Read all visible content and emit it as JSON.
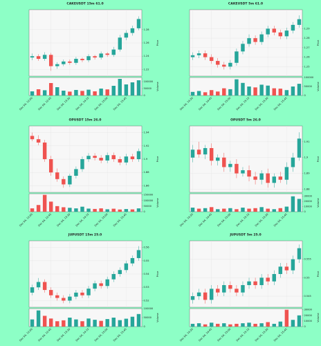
{
  "background": "#8dffc6",
  "chart_data": [
    {
      "type": "candlestick",
      "title": "CAKEUSDT 15m 61.0",
      "ylabel": "Price",
      "vol_ylabel": "Volume",
      "categories": [
        "Dec 04, 12:00",
        null,
        null,
        "Dec 04, 12:45",
        null,
        null,
        "Dec 04, 13:30",
        null,
        null,
        "Dec 04, 14:15",
        null,
        null,
        "Dec 04, 15:00",
        null,
        null,
        "Dec 04, 15:45",
        null,
        null
      ],
      "open": [
        1.238,
        1.24,
        1.236,
        1.242,
        1.225,
        1.228,
        1.232,
        1.23,
        1.236,
        1.234,
        1.24,
        1.238,
        1.244,
        1.242,
        1.25,
        1.268,
        1.275,
        1.282
      ],
      "high": [
        1.244,
        1.243,
        1.246,
        1.245,
        1.231,
        1.235,
        1.235,
        1.239,
        1.238,
        1.243,
        1.242,
        1.247,
        1.246,
        1.254,
        1.272,
        1.279,
        1.286,
        1.3
      ],
      "low": [
        1.234,
        1.233,
        1.233,
        1.218,
        1.221,
        1.225,
        1.227,
        1.227,
        1.231,
        1.231,
        1.235,
        1.235,
        1.239,
        1.239,
        1.247,
        1.264,
        1.271,
        1.279
      ],
      "close": [
        1.24,
        1.236,
        1.242,
        1.225,
        1.228,
        1.232,
        1.23,
        1.236,
        1.234,
        1.24,
        1.238,
        1.244,
        1.242,
        1.25,
        1.268,
        1.275,
        1.282,
        1.296
      ],
      "volume": [
        30000,
        45000,
        38000,
        90000,
        60000,
        35000,
        28000,
        40000,
        33000,
        42000,
        30000,
        50000,
        44000,
        70000,
        120000,
        80000,
        95000,
        110000
      ],
      "ylim": [
        1.21,
        1.31
      ],
      "yticks": [
        1.22,
        1.24,
        1.26,
        1.28
      ],
      "vol_ylim": [
        0,
        130000
      ],
      "vol_yticks": [
        0,
        50000,
        100000
      ],
      "up_color": "#26a69a",
      "down_color": "#ef5350",
      "grid": true
    },
    {
      "type": "candlestick",
      "title": "CAKEUSDT 5m 61.0",
      "ylabel": "Price",
      "vol_ylabel": "Volume",
      "categories": [
        "Dec 04, 14:30",
        null,
        null,
        "Dec 04, 14:45",
        null,
        null,
        "Dec 04, 15:00",
        null,
        null,
        "Dec 04, 15:15",
        null,
        null,
        "Dec 04, 15:30",
        null,
        null,
        "Dec 04, 15:45",
        null,
        null
      ],
      "open": [
        1.26,
        1.262,
        1.264,
        1.26,
        1.256,
        1.252,
        1.25,
        1.254,
        1.266,
        1.274,
        1.28,
        1.276,
        1.284,
        1.29,
        1.286,
        1.282,
        1.288,
        1.294
      ],
      "high": [
        1.265,
        1.267,
        1.267,
        1.263,
        1.259,
        1.255,
        1.257,
        1.269,
        1.277,
        1.284,
        1.283,
        1.287,
        1.293,
        1.293,
        1.289,
        1.291,
        1.297,
        1.304
      ],
      "low": [
        1.257,
        1.259,
        1.257,
        1.253,
        1.249,
        1.247,
        1.247,
        1.251,
        1.263,
        1.271,
        1.273,
        1.273,
        1.281,
        1.283,
        1.279,
        1.279,
        1.285,
        1.291
      ],
      "close": [
        1.262,
        1.264,
        1.26,
        1.256,
        1.252,
        1.25,
        1.254,
        1.266,
        1.274,
        1.28,
        1.276,
        1.284,
        1.29,
        1.286,
        1.282,
        1.288,
        1.294,
        1.3
      ],
      "volume": [
        20000,
        25000,
        18000,
        30000,
        22000,
        40000,
        35000,
        90000,
        70000,
        50000,
        45000,
        60000,
        55000,
        40000,
        38000,
        30000,
        50000,
        65000
      ],
      "ylim": [
        1.24,
        1.31
      ],
      "yticks": [
        1.25,
        1.26,
        1.27,
        1.28,
        1.29
      ],
      "vol_ylim": [
        0,
        100000
      ],
      "vol_yticks": [
        0,
        50000,
        100000
      ],
      "up_color": "#26a69a",
      "down_color": "#ef5350",
      "grid": true
    },
    {
      "type": "candlestick",
      "title": "OPUSDT 15m 26.0",
      "ylabel": "Price",
      "vol_ylabel": "Volume",
      "categories": [
        "Dec 04, 12:00",
        null,
        null,
        "Dec 04, 12:45",
        null,
        null,
        "Dec 04, 13:30",
        null,
        null,
        "Dec 04, 14:15",
        null,
        null,
        "Dec 04, 15:00",
        null,
        null,
        "Dec 04, 15:45",
        null,
        null
      ],
      "open": [
        1.935,
        1.93,
        1.925,
        1.9,
        1.88,
        1.87,
        1.862,
        1.875,
        1.885,
        1.9,
        1.905,
        1.902,
        1.898,
        1.906,
        1.9,
        1.895,
        1.904,
        1.9
      ],
      "high": [
        1.94,
        1.936,
        1.929,
        1.905,
        1.886,
        1.874,
        1.878,
        1.889,
        1.904,
        1.909,
        1.909,
        1.906,
        1.91,
        1.91,
        1.904,
        1.908,
        1.908,
        1.916
      ],
      "low": [
        1.927,
        1.921,
        1.896,
        1.875,
        1.866,
        1.857,
        1.858,
        1.871,
        1.881,
        1.896,
        1.898,
        1.894,
        1.894,
        1.896,
        1.891,
        1.891,
        1.896,
        1.896
      ],
      "close": [
        1.93,
        1.925,
        1.9,
        1.88,
        1.87,
        1.862,
        1.875,
        1.885,
        1.9,
        1.905,
        1.902,
        1.898,
        1.906,
        1.9,
        1.895,
        1.904,
        1.9,
        1.912
      ],
      "volume": [
        30000,
        60000,
        150000,
        90000,
        50000,
        40000,
        35000,
        30000,
        45000,
        28000,
        25000,
        30000,
        22000,
        27000,
        20000,
        24000,
        21000,
        30000
      ],
      "ylim": [
        1.85,
        1.95
      ],
      "yticks": [
        1.86,
        1.88,
        1.9,
        1.92,
        1.94
      ],
      "vol_ylim": [
        0,
        160000
      ],
      "vol_yticks": [
        0,
        50000,
        100000,
        150000
      ],
      "up_color": "#26a69a",
      "down_color": "#ef5350",
      "grid": true
    },
    {
      "type": "candlestick",
      "title": "OPUSDT 5m 26.0",
      "ylabel": "Price",
      "vol_ylabel": "Volume",
      "categories": [
        "Dec 04, 14:30",
        null,
        null,
        "Dec 04, 14:45",
        null,
        null,
        "Dec 04, 15:00",
        null,
        null,
        "Dec 04, 15:15",
        null,
        null,
        "Dec 04, 15:30",
        null,
        null,
        "Dec 04, 15:45",
        null,
        null
      ],
      "open": [
        1.9,
        1.905,
        1.902,
        1.906,
        1.898,
        1.9,
        1.894,
        1.896,
        1.89,
        1.892,
        1.888,
        1.886,
        1.89,
        1.884,
        1.888,
        1.886,
        1.894,
        1.9
      ],
      "high": [
        1.908,
        1.91,
        1.908,
        1.909,
        1.902,
        1.903,
        1.898,
        1.899,
        1.894,
        1.895,
        1.891,
        1.892,
        1.893,
        1.89,
        1.891,
        1.897,
        1.903,
        1.916
      ],
      "low": [
        1.897,
        1.9,
        1.899,
        1.895,
        1.895,
        1.891,
        1.891,
        1.887,
        1.888,
        1.885,
        1.883,
        1.883,
        1.881,
        1.881,
        1.884,
        1.883,
        1.891,
        1.898
      ],
      "close": [
        1.905,
        1.902,
        1.906,
        1.898,
        1.9,
        1.894,
        1.896,
        1.89,
        1.892,
        1.888,
        1.886,
        1.89,
        1.884,
        1.888,
        1.886,
        1.894,
        1.9,
        1.912
      ],
      "volume": [
        8000,
        6000,
        7000,
        9000,
        5000,
        6000,
        7000,
        5000,
        8000,
        6000,
        7000,
        9000,
        6000,
        5000,
        7000,
        10000,
        30000,
        25000
      ],
      "ylim": [
        1.878,
        1.92
      ],
      "yticks": [
        1.88,
        1.89,
        1.9,
        1.91
      ],
      "vol_ylim": [
        0,
        35000
      ],
      "vol_yticks": [
        0,
        10000,
        20000,
        30000
      ],
      "up_color": "#26a69a",
      "down_color": "#ef5350",
      "grid": true
    },
    {
      "type": "candlestick",
      "title": "JUPUSDT 15m 25.0",
      "ylabel": "Price",
      "vol_ylabel": "Volume",
      "categories": [
        "Dec 04, 12:00",
        null,
        null,
        "Dec 04, 12:45",
        null,
        null,
        "Dec 04, 13:30",
        null,
        null,
        "Dec 04, 14:15",
        null,
        null,
        "Dec 04, 15:00",
        null,
        null,
        "Dec 04, 15:45",
        null,
        null
      ],
      "open": [
        0.526,
        0.53,
        0.534,
        0.528,
        0.524,
        0.522,
        0.52,
        0.523,
        0.526,
        0.524,
        0.529,
        0.533,
        0.531,
        0.536,
        0.54,
        0.543,
        0.548,
        0.552
      ],
      "high": [
        0.532,
        0.537,
        0.536,
        0.53,
        0.526,
        0.524,
        0.525,
        0.528,
        0.528,
        0.531,
        0.535,
        0.535,
        0.538,
        0.542,
        0.545,
        0.55,
        0.554,
        0.561
      ],
      "low": [
        0.524,
        0.528,
        0.526,
        0.522,
        0.52,
        0.518,
        0.518,
        0.521,
        0.522,
        0.522,
        0.527,
        0.529,
        0.529,
        0.534,
        0.538,
        0.541,
        0.546,
        0.55
      ],
      "close": [
        0.53,
        0.534,
        0.528,
        0.524,
        0.522,
        0.52,
        0.523,
        0.526,
        0.524,
        0.529,
        0.533,
        0.531,
        0.536,
        0.54,
        0.543,
        0.548,
        0.552,
        0.558
      ],
      "volume": [
        40000,
        90000,
        60000,
        45000,
        30000,
        35000,
        50000,
        40000,
        30000,
        45000,
        38000,
        32000,
        42000,
        50000,
        36000,
        44000,
        55000,
        70000
      ],
      "ylim": [
        0.515,
        0.565
      ],
      "yticks": [
        0.52,
        0.53,
        0.54,
        0.55,
        0.56
      ],
      "vol_ylim": [
        0,
        100000
      ],
      "vol_yticks": [
        0,
        50000,
        100000
      ],
      "up_color": "#26a69a",
      "down_color": "#ef5350",
      "grid": true
    },
    {
      "type": "candlestick",
      "title": "JUPUSDT 5m 25.0",
      "ylabel": "Price",
      "vol_ylabel": "Volume",
      "categories": [
        "Dec 04, 14:30",
        null,
        null,
        "Dec 04, 14:45",
        null,
        null,
        "Dec 04, 15:00",
        null,
        null,
        "Dec 04, 15:15",
        null,
        null,
        "Dec 04, 15:30",
        null,
        null,
        "Dec 04, 15:45",
        null,
        null
      ],
      "open": [
        0.544,
        0.545,
        0.546,
        0.544,
        0.547,
        0.546,
        0.548,
        0.547,
        0.546,
        0.548,
        0.549,
        0.548,
        0.55,
        0.549,
        0.551,
        0.553,
        0.552,
        0.555
      ],
      "high": [
        0.546,
        0.547,
        0.547,
        0.548,
        0.548,
        0.549,
        0.549,
        0.548,
        0.549,
        0.55,
        0.55,
        0.551,
        0.551,
        0.552,
        0.554,
        0.554,
        0.556,
        0.559
      ],
      "low": [
        0.543,
        0.544,
        0.543,
        0.543,
        0.545,
        0.545,
        0.546,
        0.545,
        0.545,
        0.547,
        0.547,
        0.547,
        0.548,
        0.548,
        0.55,
        0.551,
        0.551,
        0.554
      ],
      "close": [
        0.545,
        0.546,
        0.544,
        0.547,
        0.546,
        0.548,
        0.547,
        0.546,
        0.548,
        0.549,
        0.548,
        0.55,
        0.549,
        0.551,
        0.553,
        0.552,
        0.555,
        0.558
      ],
      "volume": [
        5000,
        6000,
        4000,
        7000,
        5000,
        6000,
        4000,
        5000,
        6000,
        7000,
        5000,
        6000,
        8000,
        5000,
        9000,
        30000,
        12000,
        20000
      ],
      "ylim": [
        0.542,
        0.56
      ],
      "yticks": [
        0.545,
        0.55,
        0.555
      ],
      "vol_ylim": [
        0,
        32000
      ],
      "vol_yticks": [
        0,
        10000,
        20000,
        30000
      ],
      "up_color": "#26a69a",
      "down_color": "#ef5350",
      "grid": true
    }
  ]
}
